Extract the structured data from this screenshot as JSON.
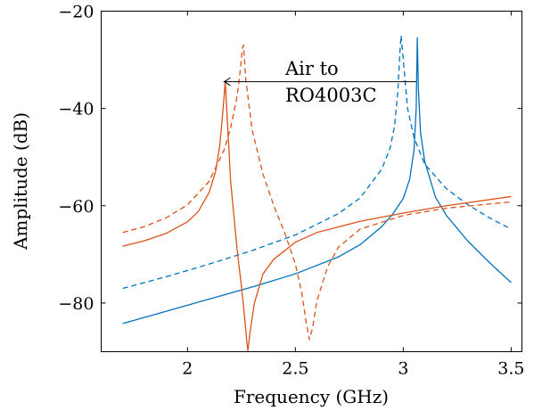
{
  "chart_data": {
    "type": "line",
    "title": "",
    "xlabel": "Frequency (GHz)",
    "ylabel": "Amplitude (dB)",
    "xlim": [
      1.6,
      3.55
    ],
    "ylim": [
      -90,
      -20
    ],
    "xticks": [
      2,
      2.5,
      3,
      3.5
    ],
    "yticks": [
      -80,
      -60,
      -40,
      -20
    ],
    "xtick_labels": [
      "2",
      "2.5",
      "3",
      "3.5"
    ],
    "ytick_labels": [
      "−80",
      "−60",
      "−40",
      "−20"
    ],
    "grid": false,
    "legend": "none",
    "annotation": {
      "lines": [
        "Air to",
        "RO4003C"
      ],
      "arrow_from": [
        3.06,
        -34.5
      ],
      "arrow_to": [
        2.17,
        -34.5
      ]
    },
    "series": [
      {
        "color": "#0072bd",
        "dash": "solid",
        "x": [
          1.7,
          1.9,
          2.1,
          2.3,
          2.5,
          2.7,
          2.8,
          2.9,
          2.95,
          3.0,
          3.03,
          3.05,
          3.06,
          3.065,
          3.07,
          3.08,
          3.1,
          3.15,
          3.2,
          3.3,
          3.4,
          3.5
        ],
        "y": [
          -84.2,
          -81.7,
          -79.2,
          -76.7,
          -74.0,
          -70.5,
          -68.0,
          -64.3,
          -61.8,
          -58.5,
          -54.5,
          -48.5,
          -40.0,
          -25.5,
          -36.0,
          -45.0,
          -51.0,
          -58.3,
          -62.0,
          -67.3,
          -71.7,
          -75.8
        ]
      },
      {
        "color": "#0072bd",
        "dash": "dashed",
        "x": [
          1.7,
          1.9,
          2.1,
          2.3,
          2.5,
          2.7,
          2.8,
          2.9,
          2.94,
          2.96,
          2.975,
          2.985,
          2.99,
          3.0,
          3.02,
          3.05,
          3.1,
          3.2,
          3.3,
          3.4,
          3.5
        ],
        "y": [
          -77.0,
          -74.6,
          -72.0,
          -69.2,
          -66.0,
          -61.6,
          -58.4,
          -52.5,
          -48.0,
          -43.5,
          -36.5,
          -28.0,
          -25.0,
          -30.0,
          -40.0,
          -46.0,
          -51.5,
          -56.5,
          -59.8,
          -62.5,
          -64.8
        ]
      },
      {
        "color": "#d95319",
        "dash": "solid",
        "x": [
          1.7,
          1.8,
          1.9,
          2.0,
          2.05,
          2.1,
          2.13,
          2.15,
          2.165,
          2.175,
          2.2,
          2.23,
          2.25,
          2.265,
          2.275,
          2.28,
          2.29,
          2.31,
          2.35,
          2.4,
          2.5,
          2.6,
          2.8,
          3.0,
          3.2,
          3.5
        ],
        "y": [
          -68.3,
          -67.2,
          -65.7,
          -63.3,
          -61.2,
          -57.3,
          -53.0,
          -47.5,
          -40.0,
          -34.5,
          -55.0,
          -69.0,
          -76.5,
          -83.0,
          -88.0,
          -89.8,
          -86.0,
          -80.0,
          -74.0,
          -71.0,
          -67.5,
          -65.5,
          -63.2,
          -61.5,
          -60.0,
          -58.1
        ]
      },
      {
        "color": "#d95319",
        "dash": "dashed",
        "x": [
          1.7,
          1.8,
          1.9,
          2.0,
          2.1,
          2.17,
          2.2,
          2.23,
          2.245,
          2.255,
          2.26,
          2.27,
          2.3,
          2.35,
          2.4,
          2.45,
          2.5,
          2.53,
          2.55,
          2.565,
          2.58,
          2.6,
          2.65,
          2.7,
          2.8,
          3.0,
          3.2,
          3.5
        ],
        "y": [
          -65.5,
          -64.3,
          -62.5,
          -59.8,
          -55.0,
          -48.5,
          -44.0,
          -37.5,
          -32.0,
          -27.5,
          -27.0,
          -34.0,
          -44.5,
          -53.5,
          -60.0,
          -65.5,
          -72.0,
          -78.0,
          -84.0,
          -87.5,
          -85.0,
          -79.5,
          -72.5,
          -68.5,
          -64.8,
          -62.0,
          -60.5,
          -59.2
        ]
      }
    ]
  }
}
